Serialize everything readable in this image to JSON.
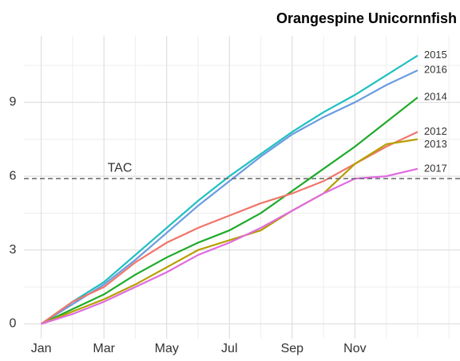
{
  "chart_data": {
    "type": "line",
    "title": "Orangespine Unicornnfish",
    "x": [
      0,
      1,
      2,
      3,
      4,
      5,
      6,
      7,
      8,
      9,
      10,
      11,
      12
    ],
    "xlim": [
      -0.55,
      13.35
    ],
    "xticks": [
      {
        "value": 0,
        "label": "Jan"
      },
      {
        "value": 2,
        "label": "Mar"
      },
      {
        "value": 4,
        "label": "May"
      },
      {
        "value": 6,
        "label": "Jul"
      },
      {
        "value": 8,
        "label": "Sep"
      },
      {
        "value": 10,
        "label": "Nov"
      }
    ],
    "ylim": [
      -0.6,
      11.7
    ],
    "yticks": [
      0,
      3,
      6,
      9
    ],
    "grid": true,
    "hline": {
      "value": 5.9,
      "label": "TAC"
    },
    "series": [
      {
        "name": "2015",
        "color": "#1fbfc0",
        "values": [
          0,
          0.9,
          1.7,
          2.8,
          3.9,
          5.0,
          6.0,
          6.9,
          7.8,
          8.6,
          9.3,
          10.1,
          10.9
        ]
      },
      {
        "name": "2016",
        "color": "#6b9be0",
        "values": [
          0,
          0.8,
          1.6,
          2.6,
          3.7,
          4.8,
          5.8,
          6.8,
          7.7,
          8.4,
          9.0,
          9.7,
          10.3
        ]
      },
      {
        "name": "2014",
        "color": "#1faa2a",
        "values": [
          0,
          0.6,
          1.2,
          2.0,
          2.7,
          3.3,
          3.8,
          4.5,
          5.4,
          6.3,
          7.2,
          8.2,
          9.2
        ]
      },
      {
        "name": "2012",
        "color": "#f0756a",
        "values": [
          0,
          0.9,
          1.5,
          2.5,
          3.3,
          3.9,
          4.4,
          4.9,
          5.3,
          5.8,
          6.5,
          7.2,
          7.8
        ]
      },
      {
        "name": "2013",
        "color": "#b5a000",
        "values": [
          0,
          0.5,
          1.0,
          1.6,
          2.3,
          3.0,
          3.4,
          3.8,
          4.6,
          5.3,
          6.5,
          7.3,
          7.5
        ]
      },
      {
        "name": "2017",
        "color": "#e06be0",
        "values": [
          0,
          0.4,
          0.9,
          1.5,
          2.1,
          2.8,
          3.3,
          3.9,
          4.6,
          5.3,
          5.9,
          6.0,
          6.3
        ]
      }
    ]
  }
}
